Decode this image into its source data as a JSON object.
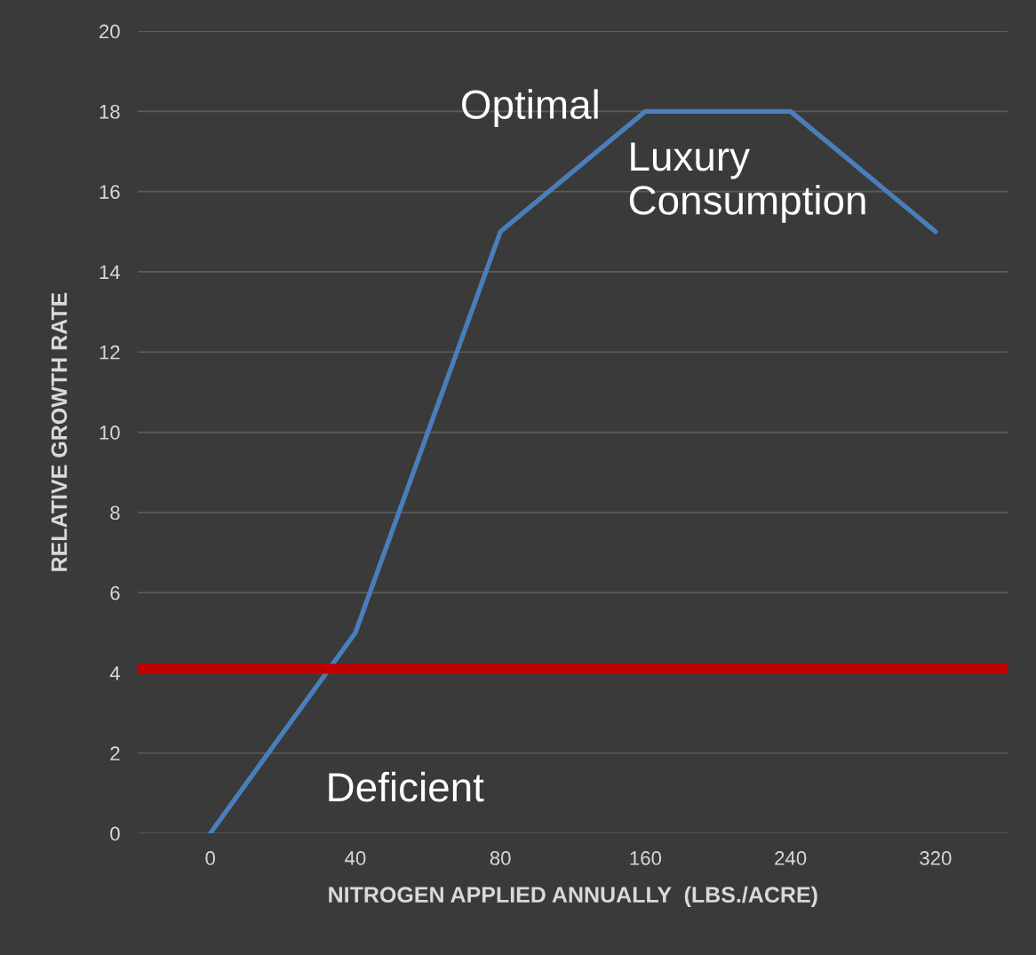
{
  "chart_data": {
    "type": "line",
    "xlabel": "NITROGEN APPLIED ANNUALLY  (LBS./ACRE)",
    "ylabel": "RELATIVE GROWTH RATE",
    "categories": [
      "0",
      "40",
      "80",
      "160",
      "240",
      "320"
    ],
    "series": [
      {
        "color": "#4a7ebb",
        "values": [
          0,
          5,
          15,
          18,
          18,
          15
        ]
      }
    ],
    "ylim": [
      0,
      20
    ],
    "yticks": [
      0,
      2,
      4,
      6,
      8,
      10,
      12,
      14,
      16,
      18,
      20
    ],
    "grid": "y",
    "legend": false,
    "marker": "none",
    "line_style": "solid",
    "ref_lines": [
      {
        "axis": "y",
        "value": 4.1,
        "color": "#c00000"
      }
    ],
    "annotations": [
      "Optimal",
      "Luxury\nConsumption",
      "Deficient"
    ]
  }
}
